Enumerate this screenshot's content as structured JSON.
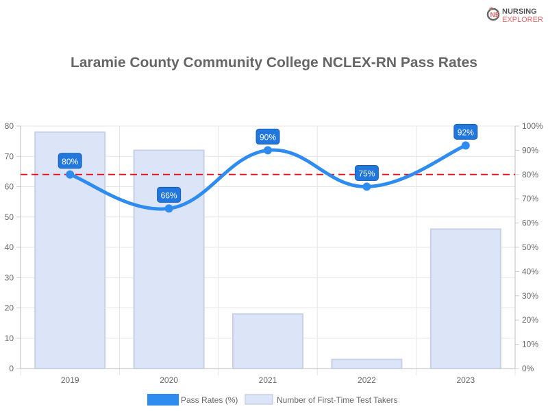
{
  "logo": {
    "line1": "NURSING",
    "line2": "EXPLORER"
  },
  "chart_data": {
    "type": "bar+line",
    "title": "Laramie County Community College NCLEX-RN Pass Rates",
    "categories": [
      "2019",
      "2020",
      "2021",
      "2022",
      "2023"
    ],
    "series": [
      {
        "name": "Pass Rates (%)",
        "type": "line",
        "axis": "right",
        "values": [
          80,
          66,
          90,
          75,
          92
        ],
        "labels": [
          "80%",
          "66%",
          "90%",
          "75%",
          "92%"
        ],
        "color": "#2e8cf0"
      },
      {
        "name": "Number of First-Time Test Takers",
        "type": "bar",
        "axis": "left",
        "values": [
          78,
          72,
          18,
          3,
          46
        ],
        "color": "#dce4f7"
      }
    ],
    "reference_line": {
      "value_percent": 80,
      "color": "#e8151b",
      "style": "dashed"
    },
    "y_left": {
      "ylim": [
        0,
        80
      ],
      "ticks": [
        "0",
        "10",
        "20",
        "30",
        "40",
        "50",
        "60",
        "70",
        "80"
      ]
    },
    "y_right": {
      "ylim": [
        0,
        100
      ],
      "ticks": [
        "0%",
        "10%",
        "20%",
        "30%",
        "40%",
        "50%",
        "60%",
        "70%",
        "80%",
        "90%",
        "100%"
      ]
    },
    "grid": true,
    "legend_position": "bottom"
  }
}
